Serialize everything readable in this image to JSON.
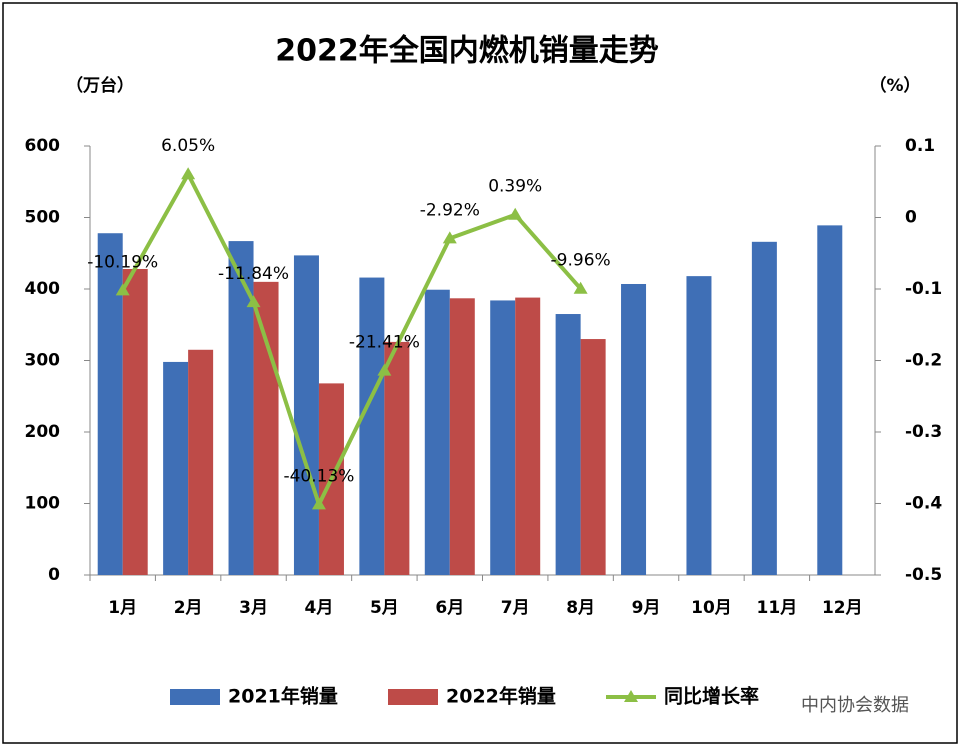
{
  "chart_data": {
    "type": "bar",
    "title": "2022年全国内燃机销量走势",
    "y_label": "（万台）",
    "y2_label": "（%）",
    "categories": [
      "1月",
      "2月",
      "3月",
      "4月",
      "5月",
      "6月",
      "7月",
      "8月",
      "9月",
      "10月",
      "11月",
      "12月"
    ],
    "series": [
      {
        "name": "2021年销量",
        "color": "#3f6fb6",
        "values": [
          478,
          298,
          467,
          447,
          416,
          399,
          384,
          365,
          407,
          418,
          466,
          489
        ]
      },
      {
        "name": "2022年销量",
        "color": "#be4b48",
        "values": [
          428,
          315,
          410,
          268,
          326,
          387,
          388,
          330,
          null,
          null,
          null,
          null
        ]
      },
      {
        "name": "同比增长率",
        "color": "#8cbf45",
        "type": "line",
        "axis": "y2",
        "values": [
          -0.1019,
          0.0605,
          -0.1184,
          -0.4013,
          -0.2141,
          -0.0292,
          0.0039,
          -0.0996,
          null,
          null,
          null,
          null
        ],
        "value_labels": [
          "-10.19%",
          "6.05%",
          "-11.84%",
          "-40.13%",
          "-21.41%",
          "-2.92%",
          "0.39%",
          "-9.96%",
          null,
          null,
          null,
          null
        ]
      }
    ],
    "ylim": [
      0,
      600
    ],
    "yticks": [
      0,
      100,
      200,
      300,
      400,
      500,
      600
    ],
    "y2lim": [
      -0.5,
      0.1
    ],
    "y2ticks": [
      -0.5,
      -0.4,
      -0.3,
      -0.2,
      -0.1,
      0,
      0.1
    ],
    "legend": "bottom",
    "watermark": "中内协会数据"
  }
}
